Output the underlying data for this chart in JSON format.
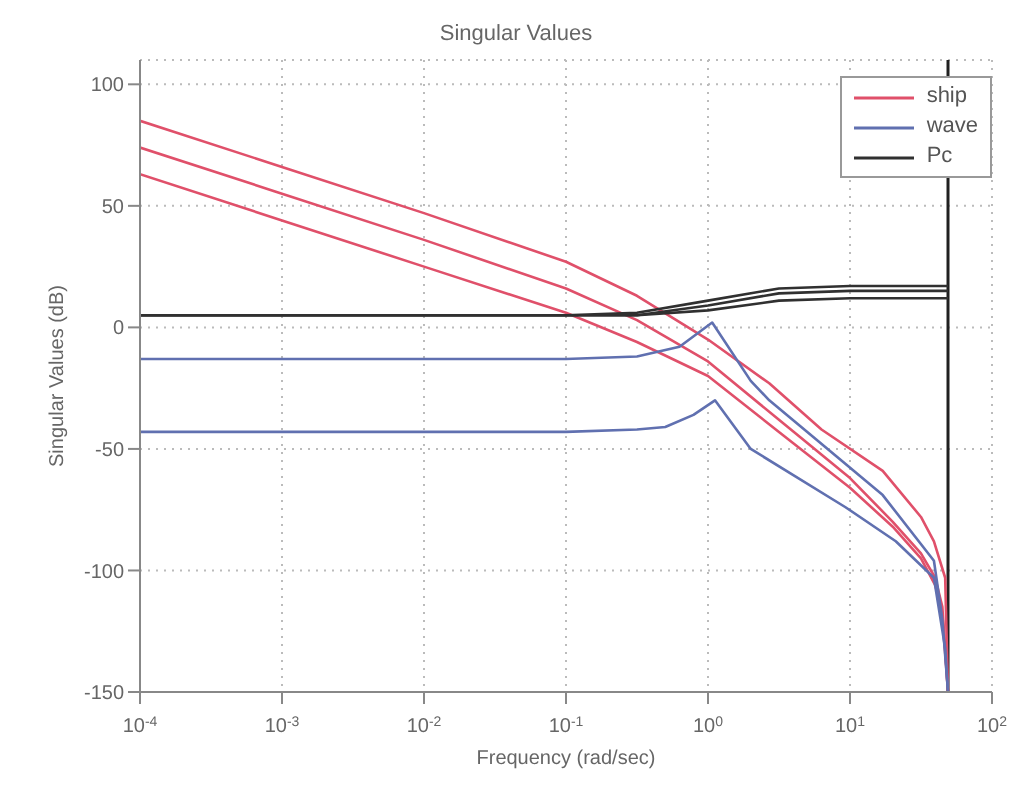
{
  "chart_data": {
    "type": "line",
    "title": "Singular Values",
    "xlabel": "Frequency (rad/sec)",
    "ylabel": "Singular Values (dB)",
    "log": "x",
    "grid": true,
    "legend": "top right",
    "marker": "none",
    "line_style": "solid",
    "xlim": [
      0.0001,
      100
    ],
    "xticks": [
      {
        "value": 0.0001,
        "label": "10$^{-4}$"
      },
      {
        "value": 0.001,
        "label": "10$^{-3}$"
      },
      {
        "value": 0.01,
        "label": "10$^{-2}$"
      },
      {
        "value": 0.1,
        "label": "10$^{-1}$"
      },
      {
        "value": 1,
        "label": "10$^{0}$"
      },
      {
        "value": 10,
        "label": "10$^{1}$"
      },
      {
        "value": 100,
        "label": "10$^{2}$"
      }
    ],
    "ylim": [
      -150,
      110
    ],
    "yticks": [
      -150,
      -100,
      -50,
      0,
      50,
      100
    ],
    "ref_lines": [
      {
        "axis": "x",
        "value": 49,
        "color": "#202020"
      }
    ],
    "series": [
      {
        "name": "ship",
        "color": "#e0506a",
        "x": [
          0.0001,
          0.001,
          0.01,
          0.1,
          0.316,
          1,
          2.7,
          6.3,
          17,
          31.6,
          39,
          46.8,
          49
        ],
        "values": [
          85,
          66,
          47,
          27,
          13,
          -5,
          -23,
          -42,
          -59,
          -78,
          -88,
          -103,
          -150
        ]
      },
      {
        "color": "#e0506a",
        "x": [
          0.0001,
          0.001,
          0.01,
          0.1,
          0.316,
          1,
          3.16,
          10,
          20,
          31.6,
          39.8,
          44.7,
          49
        ],
        "values": [
          74,
          55,
          36,
          16,
          3,
          -14,
          -38,
          -62,
          -80,
          -93,
          -103,
          -115,
          -150
        ]
      },
      {
        "color": "#e0506a",
        "x": [
          0.0001,
          0.001,
          0.01,
          0.1,
          0.316,
          1,
          3.16,
          10,
          20,
          31.6,
          39.8,
          44.7,
          49
        ],
        "values": [
          63,
          44,
          25,
          6,
          -6,
          -20,
          -43,
          -66,
          -82,
          -95,
          -106,
          -118,
          -150
        ]
      },
      {
        "name": "wave",
        "color": "#6070b0",
        "x": [
          0.0001,
          0.1,
          0.316,
          0.63,
          1.07,
          2,
          2.7,
          17,
          39,
          44.7,
          49
        ],
        "values": [
          -13,
          -13,
          -12,
          -8,
          2,
          -22,
          -30,
          -69,
          -96,
          -120,
          -150
        ]
      },
      {
        "color": "#6070b0",
        "x": [
          0.0001,
          0.1,
          0.316,
          0.5,
          0.79,
          1.12,
          2,
          9.3,
          21,
          39,
          46.8,
          49
        ],
        "values": [
          -43,
          -43,
          -42,
          -41,
          -36,
          -30,
          -50,
          -74,
          -88,
          -103,
          -132,
          -150
        ]
      },
      {
        "name": "Pc",
        "color": "#303030",
        "x": [
          0.0001,
          0.1,
          0.316,
          1,
          3.16,
          10,
          49
        ],
        "values": [
          5,
          5,
          6,
          11,
          16,
          17,
          17
        ]
      },
      {
        "color": "#303030",
        "x": [
          0.0001,
          0.1,
          0.316,
          1,
          3.16,
          10,
          49
        ],
        "values": [
          5,
          5,
          5,
          9,
          14,
          15,
          15
        ]
      },
      {
        "color": "#303030",
        "x": [
          0.0001,
          0.1,
          0.316,
          1,
          3.16,
          10,
          49
        ],
        "values": [
          5,
          5,
          5,
          7,
          11,
          12,
          12
        ]
      }
    ]
  }
}
